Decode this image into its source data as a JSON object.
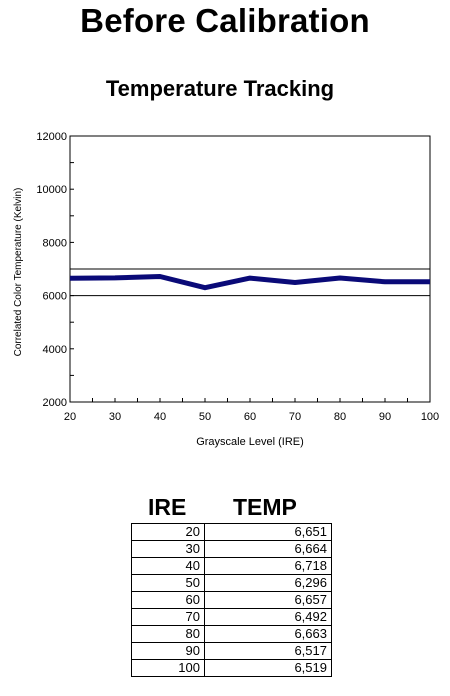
{
  "page_title": "Before Calibration",
  "chart_data": {
    "type": "line",
    "title": "Temperature Tracking",
    "xlabel": "Grayscale Level (IRE)",
    "ylabel": "Correlated Color Temperature (Kelvin)",
    "x": [
      20,
      30,
      40,
      50,
      60,
      70,
      80,
      90,
      100
    ],
    "series": [
      {
        "values": [
          6651,
          6664,
          6718,
          6296,
          6657,
          6492,
          6663,
          6517,
          6519
        ],
        "color": "#0a0a78"
      }
    ],
    "reference_lines": [
      7000,
      6000
    ],
    "xlim": [
      20,
      100
    ],
    "ylim": [
      2000,
      12000
    ],
    "xticks": [
      20,
      30,
      40,
      50,
      60,
      70,
      80,
      90,
      100
    ],
    "yticks": [
      2000,
      4000,
      6000,
      8000,
      10000,
      12000
    ],
    "grid": false,
    "legend": "none"
  },
  "table": {
    "headers": [
      "IRE",
      "TEMP"
    ],
    "rows": [
      [
        "20",
        "6,651"
      ],
      [
        "30",
        "6,664"
      ],
      [
        "40",
        "6,718"
      ],
      [
        "50",
        "6,296"
      ],
      [
        "60",
        "6,657"
      ],
      [
        "70",
        "6,492"
      ],
      [
        "80",
        "6,663"
      ],
      [
        "90",
        "6,517"
      ],
      [
        "100",
        "6,519"
      ]
    ]
  }
}
